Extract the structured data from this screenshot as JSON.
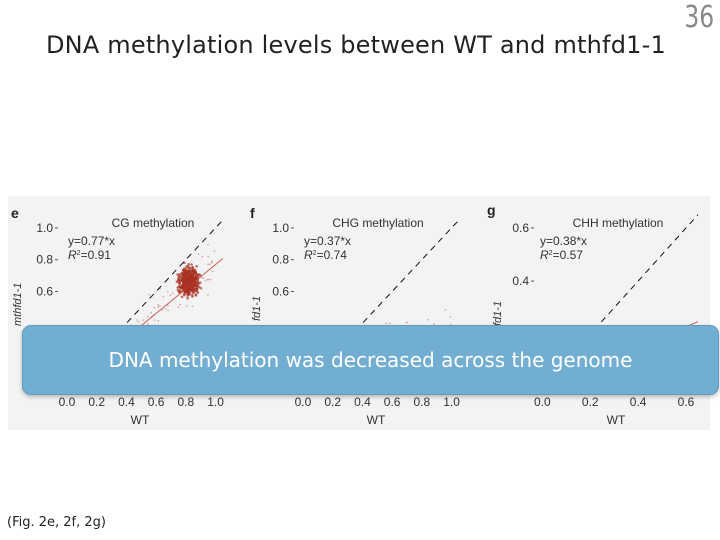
{
  "slide": {
    "title": "DNA methylation levels between WT and mthfd1-1",
    "number": "36",
    "banner": "DNA methylation was decreased across the genome",
    "caption": "(Fig. 2e, 2f, 2g)"
  },
  "colors": {
    "points": "#a83224",
    "banner": "#72aed2",
    "axis": "#333333"
  },
  "chart_data": [
    {
      "type": "scatter",
      "panel_label": "e",
      "title": "CG methylation",
      "xlabel": "WT",
      "ylabel": "mthfd1-1",
      "xlim": [
        -0.02,
        1.05
      ],
      "ylim": [
        -0.02,
        1.1
      ],
      "xticks": [
        "0.0",
        "0.2",
        "0.4",
        "0.6",
        "0.8",
        "1.0"
      ],
      "xtick_values": [
        0,
        0.2,
        0.4,
        0.6,
        0.8,
        1.0
      ],
      "yticks": [
        "0.6",
        "0.8",
        "1.0"
      ],
      "ytick_values": [
        0.6,
        0.8,
        1.0
      ],
      "fit_slope": 0.77,
      "equation": "y=0.77*x",
      "r2_label": "R",
      "r2_value": "=0.91",
      "points_summary": {
        "center": [
          0.82,
          0.66
        ],
        "spread": [
          0.06,
          0.08
        ],
        "background_x_range": [
          0.35,
          1.0
        ]
      }
    },
    {
      "type": "scatter",
      "panel_label": "f",
      "title": "CHG methylation",
      "xlabel": "WT",
      "ylabel": "fd1-1",
      "xlim": [
        -0.02,
        1.05
      ],
      "ylim": [
        -0.02,
        1.1
      ],
      "xticks": [
        "0.0",
        "0.2",
        "0.4",
        "0.6",
        "0.8",
        "1.0"
      ],
      "xtick_values": [
        0,
        0.2,
        0.4,
        0.6,
        0.8,
        1.0
      ],
      "yticks": [
        "0.6",
        "0.8",
        "1.0"
      ],
      "ytick_values": [
        0.6,
        0.8,
        1.0
      ],
      "fit_slope": 0.37,
      "equation": "y=0.37*x",
      "r2_label": "R",
      "r2_value": "=0.74",
      "points_summary": {
        "center": [
          0.72,
          0.3
        ],
        "spread": [
          0.12,
          0.08
        ],
        "background_x_range": [
          0.4,
          1.0
        ]
      }
    },
    {
      "type": "scatter",
      "panel_label": "g",
      "title": "CHH methylation",
      "xlabel": "WT",
      "ylabel": "fd1-1",
      "xlim": [
        -0.01,
        0.65
      ],
      "ylim": [
        -0.01,
        0.66
      ],
      "xticks": [
        "0.0",
        "0.2",
        "0.4",
        "0.6"
      ],
      "xtick_values": [
        0,
        0.2,
        0.4,
        0.6
      ],
      "yticks": [
        "0.4",
        "0.6"
      ],
      "ytick_values": [
        0.4,
        0.6
      ],
      "fit_slope": 0.38,
      "equation": "y=0.38*x",
      "r2_label": "R",
      "r2_value": "=0.57",
      "points_summary": {
        "center": [
          0.1,
          0.04
        ],
        "spread": [
          0.05,
          0.02
        ],
        "background_x_range": [
          0.0,
          0.3
        ]
      }
    }
  ]
}
